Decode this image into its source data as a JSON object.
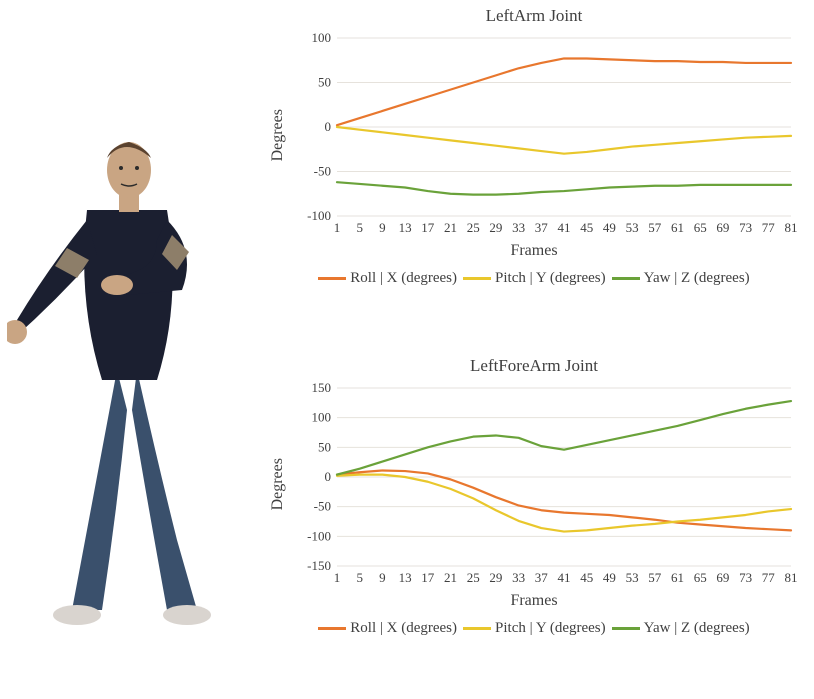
{
  "figure": {
    "name": "3d-human-figure",
    "skin_color": "#c9a583",
    "hair_color": "#5a422f",
    "shirt_color": "#1b1f30",
    "shirt_stripe": "#8d7e69",
    "jeans_color": "#3a506c",
    "shoe_color": "#d9d4cf",
    "outline": "#2b2b2b"
  },
  "colors": {
    "roll": "#e8772e",
    "pitch": "#e9c72c",
    "yaw": "#6aa23a",
    "grid": "#e6e2dc",
    "axis_text": "#404040",
    "background": "#ffffff"
  },
  "axis_fontsize": 13,
  "title_fontsize": 17,
  "label_fontsize": 16,
  "legend_fontsize": 15,
  "line_width": 2.2,
  "x_ticks": [
    1,
    5,
    9,
    13,
    17,
    21,
    25,
    29,
    33,
    37,
    41,
    45,
    49,
    53,
    57,
    61,
    65,
    69,
    73,
    77,
    81
  ],
  "legend_labels": {
    "roll": "Roll | X (degrees)",
    "pitch": "Pitch | Y (degrees)",
    "yaw": "Yaw | Z (degrees)"
  },
  "charts": [
    {
      "id": "leftarm",
      "title": "LeftArm Joint",
      "y_label": "Degrees",
      "x_label": "Frames",
      "ylim": [
        -100,
        100
      ],
      "y_ticks": [
        -100,
        -50,
        0,
        50,
        100
      ],
      "series": {
        "roll": [
          2,
          10,
          18,
          26,
          34,
          42,
          50,
          58,
          66,
          72,
          77,
          77,
          76,
          75,
          74,
          74,
          73,
          73,
          72,
          72,
          72
        ],
        "pitch": [
          0,
          -3,
          -6,
          -9,
          -12,
          -15,
          -18,
          -21,
          -24,
          -27,
          -30,
          -28,
          -25,
          -22,
          -20,
          -18,
          -16,
          -14,
          -12,
          -11,
          -10
        ],
        "yaw": [
          -62,
          -64,
          -66,
          -68,
          -72,
          -75,
          -76,
          -76,
          -75,
          -73,
          -72,
          -70,
          -68,
          -67,
          -66,
          -66,
          -65,
          -65,
          -65,
          -65,
          -65
        ]
      }
    },
    {
      "id": "leftforearm",
      "title": "LeftForeArm Joint",
      "y_label": "Degrees",
      "x_label": "Frames",
      "ylim": [
        -150,
        150
      ],
      "y_ticks": [
        -150,
        -100,
        -50,
        0,
        50,
        100,
        150
      ],
      "series": {
        "roll": [
          4,
          8,
          11,
          10,
          6,
          -4,
          -18,
          -34,
          -48,
          -56,
          -60,
          -62,
          -64,
          -68,
          -72,
          -77,
          -80,
          -83,
          -86,
          -88,
          -90
        ],
        "pitch": [
          2,
          4,
          4,
          0,
          -8,
          -20,
          -36,
          -56,
          -74,
          -86,
          -92,
          -90,
          -86,
          -82,
          -79,
          -75,
          -72,
          -68,
          -64,
          -58,
          -54
        ],
        "yaw": [
          4,
          14,
          26,
          38,
          50,
          60,
          68,
          70,
          66,
          52,
          46,
          54,
          62,
          70,
          78,
          86,
          96,
          106,
          115,
          122,
          128
        ]
      }
    }
  ]
}
